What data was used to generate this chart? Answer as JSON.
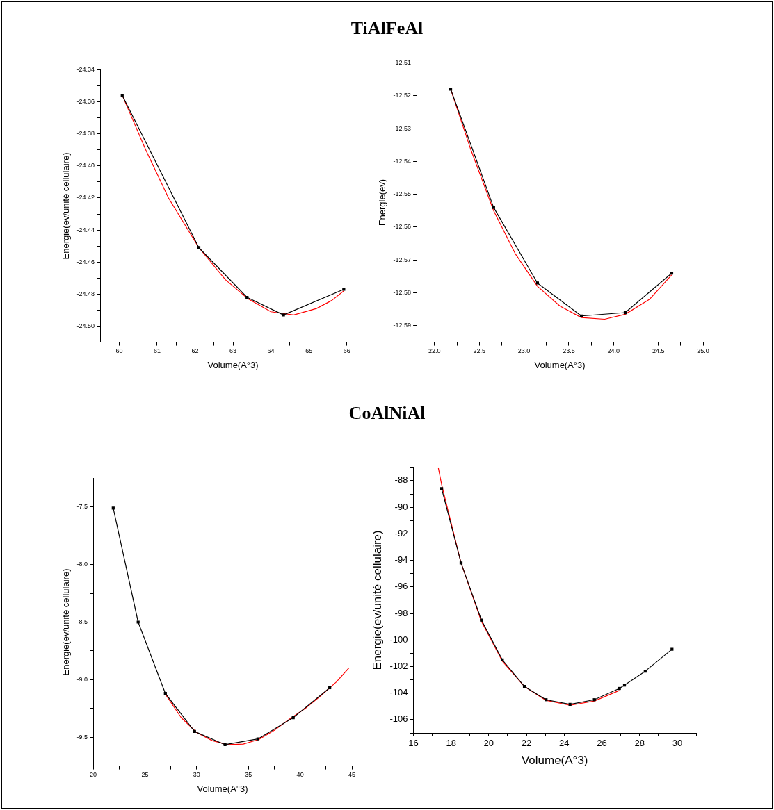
{
  "chart_data": [
    {
      "type": "line",
      "title": "TiAlFeAl",
      "xlabel": "Volume(A°3)",
      "ylabel": "Energie(ev/unité cellulaire)",
      "marker": "square",
      "grid": false,
      "legend": false,
      "xlim": [
        59.5,
        66.5
      ],
      "xticks": [
        60,
        {
          "value": 60.5,
          "label": null
        },
        61,
        {
          "value": 61.5,
          "label": null
        },
        62,
        {
          "value": 62.5,
          "label": null
        },
        63,
        {
          "value": 63.5,
          "label": null
        },
        64,
        {
          "value": 64.5,
          "label": null
        },
        65,
        {
          "value": 65.5,
          "label": null
        },
        66
      ],
      "ylim": [
        -24.51,
        -24.34
      ],
      "yticks": [
        {
          "value": -24.5,
          "label": "-24.50"
        },
        {
          "value": -24.49,
          "label": null
        },
        -24.48,
        {
          "value": -24.47,
          "label": null
        },
        -24.46,
        {
          "value": -24.45,
          "label": null
        },
        -24.44,
        {
          "value": -24.43,
          "label": null
        },
        -24.42,
        {
          "value": -24.41,
          "label": null
        },
        {
          "value": -24.4,
          "label": "-24.40"
        },
        {
          "value": -24.39,
          "label": null
        },
        -24.38,
        {
          "value": -24.37,
          "label": null
        },
        -24.36,
        {
          "value": -24.35,
          "label": null
        },
        -24.34
      ],
      "series": [
        {
          "color": "#000000",
          "x": [
            60.08,
            62.1,
            63.37,
            64.33,
            65.92
          ],
          "values": [
            -24.356,
            -24.451,
            -24.482,
            -24.493,
            -24.477
          ]
        },
        {
          "type": "line",
          "marker": "none",
          "color": "#ff0000",
          "x": [
            60.1,
            60.7,
            61.3,
            62.1,
            62.8,
            63.4,
            64.0,
            64.6,
            65.2,
            65.6,
            65.92
          ],
          "values": [
            -24.357,
            -24.39,
            -24.42,
            -24.451,
            -24.471,
            -24.483,
            -24.491,
            -24.493,
            -24.489,
            -24.484,
            -24.478
          ]
        }
      ]
    },
    {
      "type": "line",
      "xlabel": "Volume(A°3)",
      "ylabel": "Energie(ev)",
      "marker": "square",
      "grid": false,
      "legend": false,
      "xlim": [
        21.8,
        25.0
      ],
      "xticks": [
        {
          "value": 22,
          "label": "22.0"
        },
        {
          "value": 22.25,
          "label": null
        },
        22.5,
        {
          "value": 22.75,
          "label": null
        },
        {
          "value": 23,
          "label": "23.0"
        },
        {
          "value": 23.25,
          "label": null
        },
        23.5,
        {
          "value": 23.75,
          "label": null
        },
        {
          "value": 24,
          "label": "24.0"
        },
        {
          "value": 24.25,
          "label": null
        },
        24.5,
        {
          "value": 24.75,
          "label": null
        },
        {
          "value": 25,
          "label": "25.0"
        }
      ],
      "ylim": [
        -12.595,
        -12.51
      ],
      "yticks": [
        -12.59,
        -12.58,
        -12.57,
        -12.56,
        -12.55,
        -12.54,
        -12.53,
        -12.52,
        -12.51
      ],
      "series": [
        {
          "color": "#000000",
          "x": [
            22.18,
            22.66,
            23.15,
            23.64,
            24.13,
            24.65
          ],
          "values": [
            -12.518,
            -12.554,
            -12.577,
            -12.587,
            -12.586,
            -12.574
          ]
        },
        {
          "type": "line",
          "marker": "none",
          "color": "#ff0000",
          "x": [
            22.18,
            22.4,
            22.66,
            22.9,
            23.15,
            23.4,
            23.64,
            23.9,
            24.13,
            24.4,
            24.65
          ],
          "values": [
            -12.518,
            -12.536,
            -12.555,
            -12.568,
            -12.578,
            -12.584,
            -12.5875,
            -12.588,
            -12.5865,
            -12.582,
            -12.5745
          ]
        }
      ]
    },
    {
      "type": "line",
      "title": "CoAlNiAl",
      "xlabel": "Volume(A°3)",
      "ylabel": "Energie(ev/unité cellulaire)",
      "marker": "square",
      "grid": false,
      "legend": false,
      "xlim": [
        20,
        45
      ],
      "xticks": [
        20,
        {
          "value": 22.5,
          "label": null
        },
        25,
        {
          "value": 27.5,
          "label": null
        },
        30,
        {
          "value": 32.5,
          "label": null
        },
        35,
        {
          "value": 37.5,
          "label": null
        },
        40,
        {
          "value": 42.5,
          "label": null
        },
        45
      ],
      "ylim": [
        -9.75,
        -7.25
      ],
      "yticks": [
        {
          "value": -9.5,
          "label": "-9.5"
        },
        {
          "value": -9.25,
          "label": null
        },
        {
          "value": -9,
          "label": "-9.0"
        },
        {
          "value": -8.75,
          "label": null
        },
        -8.5,
        {
          "value": -8.25,
          "label": null
        },
        {
          "value": -8,
          "label": "-8.0"
        },
        {
          "value": -7.75,
          "label": null
        },
        -7.5
      ],
      "series": [
        {
          "color": "#000000",
          "x": [
            21.93,
            24.34,
            26.97,
            29.79,
            32.74,
            35.92,
            39.33,
            42.86
          ],
          "values": [
            -7.51,
            -8.5,
            -9.12,
            -9.45,
            -9.565,
            -9.515,
            -9.33,
            -9.07
          ]
        },
        {
          "type": "line",
          "marker": "none",
          "color": "#ff0000",
          "x": [
            27.0,
            28.5,
            30,
            31.5,
            33,
            34.5,
            36,
            37.5,
            39,
            40.5,
            42,
            43.5,
            44.7
          ],
          "values": [
            -9.13,
            -9.33,
            -9.46,
            -9.53,
            -9.565,
            -9.56,
            -9.52,
            -9.44,
            -9.34,
            -9.25,
            -9.14,
            -9.02,
            -8.9
          ]
        }
      ]
    },
    {
      "type": "line",
      "xlabel": "Volume(A°3)",
      "ylabel": "Energie(ev/unité cellulaire)",
      "marker": "square",
      "grid": false,
      "legend": false,
      "xlim": [
        16,
        31
      ],
      "xticks": [
        16,
        {
          "value": 17,
          "label": null
        },
        18,
        {
          "value": 19,
          "label": null
        },
        20,
        {
          "value": 21,
          "label": null
        },
        22,
        {
          "value": 23,
          "label": null
        },
        24,
        {
          "value": 25,
          "label": null
        },
        26,
        {
          "value": 27,
          "label": null
        },
        28,
        {
          "value": 29,
          "label": null
        },
        30,
        {
          "value": 31,
          "label": null
        }
      ],
      "ylim": [
        -107,
        -87
      ],
      "yticks": [
        {
          "value": -107,
          "label": null
        },
        -106,
        {
          "value": -105,
          "label": null
        },
        -104,
        {
          "value": -103,
          "label": null
        },
        -102,
        {
          "value": -101,
          "label": null
        },
        -100,
        {
          "value": -99,
          "label": null
        },
        -98,
        {
          "value": -97,
          "label": null
        },
        -96,
        {
          "value": -95,
          "label": null
        },
        -94,
        {
          "value": -93,
          "label": null
        },
        -92,
        {
          "value": -91,
          "label": null
        },
        -90,
        {
          "value": -89,
          "label": null
        },
        -88,
        {
          "value": -87,
          "label": null
        }
      ],
      "series": [
        {
          "color": "#000000",
          "x": [
            17.5,
            18.53,
            19.61,
            20.72,
            21.89,
            23.04,
            24.31,
            25.6,
            26.93,
            27.2,
            28.3,
            29.72
          ],
          "values": [
            -88.6,
            -94.2,
            -98.5,
            -101.5,
            -103.5,
            -104.5,
            -104.85,
            -104.5,
            -103.65,
            -103.4,
            -102.35,
            -100.7
          ]
        },
        {
          "type": "line",
          "marker": "none",
          "color": "#ff0000",
          "x": [
            17.32,
            17.5,
            18.53,
            19.61,
            20.72,
            21.89,
            23.04,
            24.31,
            25.6,
            26.93
          ],
          "values": [
            -87.0,
            -88.3,
            -94.2,
            -98.6,
            -101.6,
            -103.5,
            -104.55,
            -104.92,
            -104.6,
            -103.8
          ]
        }
      ]
    }
  ]
}
